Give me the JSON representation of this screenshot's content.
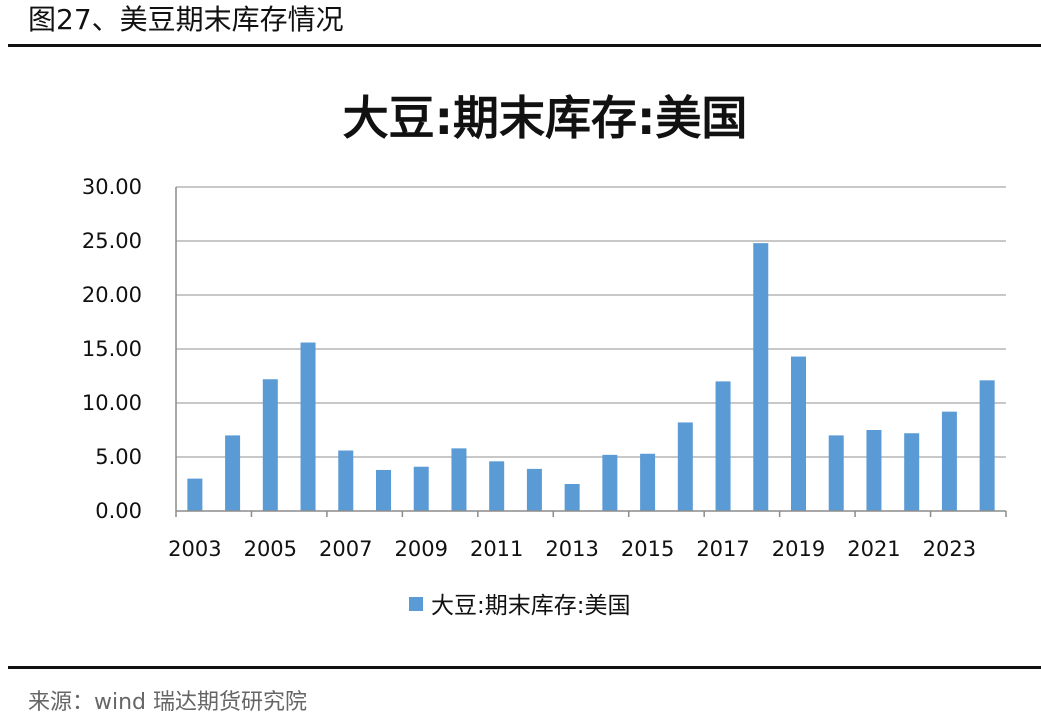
{
  "figure": {
    "title": "图27、美豆期末库存情况",
    "source": "来源：wind   瑞达期货研究院"
  },
  "chart_data": {
    "type": "bar",
    "title": "大豆:期末库存:美国",
    "xlabel": "",
    "ylabel": "",
    "ylim": [
      0,
      30
    ],
    "yticks": [
      "0.00",
      "5.00",
      "10.00",
      "15.00",
      "20.00",
      "25.00",
      "30.00"
    ],
    "xtick_labels": [
      "2003",
      "2005",
      "2007",
      "2009",
      "2011",
      "2013",
      "2015",
      "2017",
      "2019",
      "2021",
      "2023"
    ],
    "grid": true,
    "legend_position": "bottom",
    "bar_color": "#5B9BD5",
    "categories": [
      "2003",
      "2004",
      "2005",
      "2006",
      "2007",
      "2008",
      "2009",
      "2010",
      "2011",
      "2012",
      "2013",
      "2014",
      "2015",
      "2016",
      "2017",
      "2018",
      "2019",
      "2020",
      "2021",
      "2022",
      "2023",
      "2024"
    ],
    "series": [
      {
        "name": "大豆:期末库存:美国",
        "values": [
          3.0,
          7.0,
          12.2,
          15.6,
          5.6,
          3.8,
          4.1,
          5.8,
          4.6,
          3.9,
          2.5,
          5.2,
          5.3,
          8.2,
          12.0,
          24.8,
          14.3,
          7.0,
          7.5,
          7.2,
          9.2,
          12.1
        ]
      }
    ]
  }
}
